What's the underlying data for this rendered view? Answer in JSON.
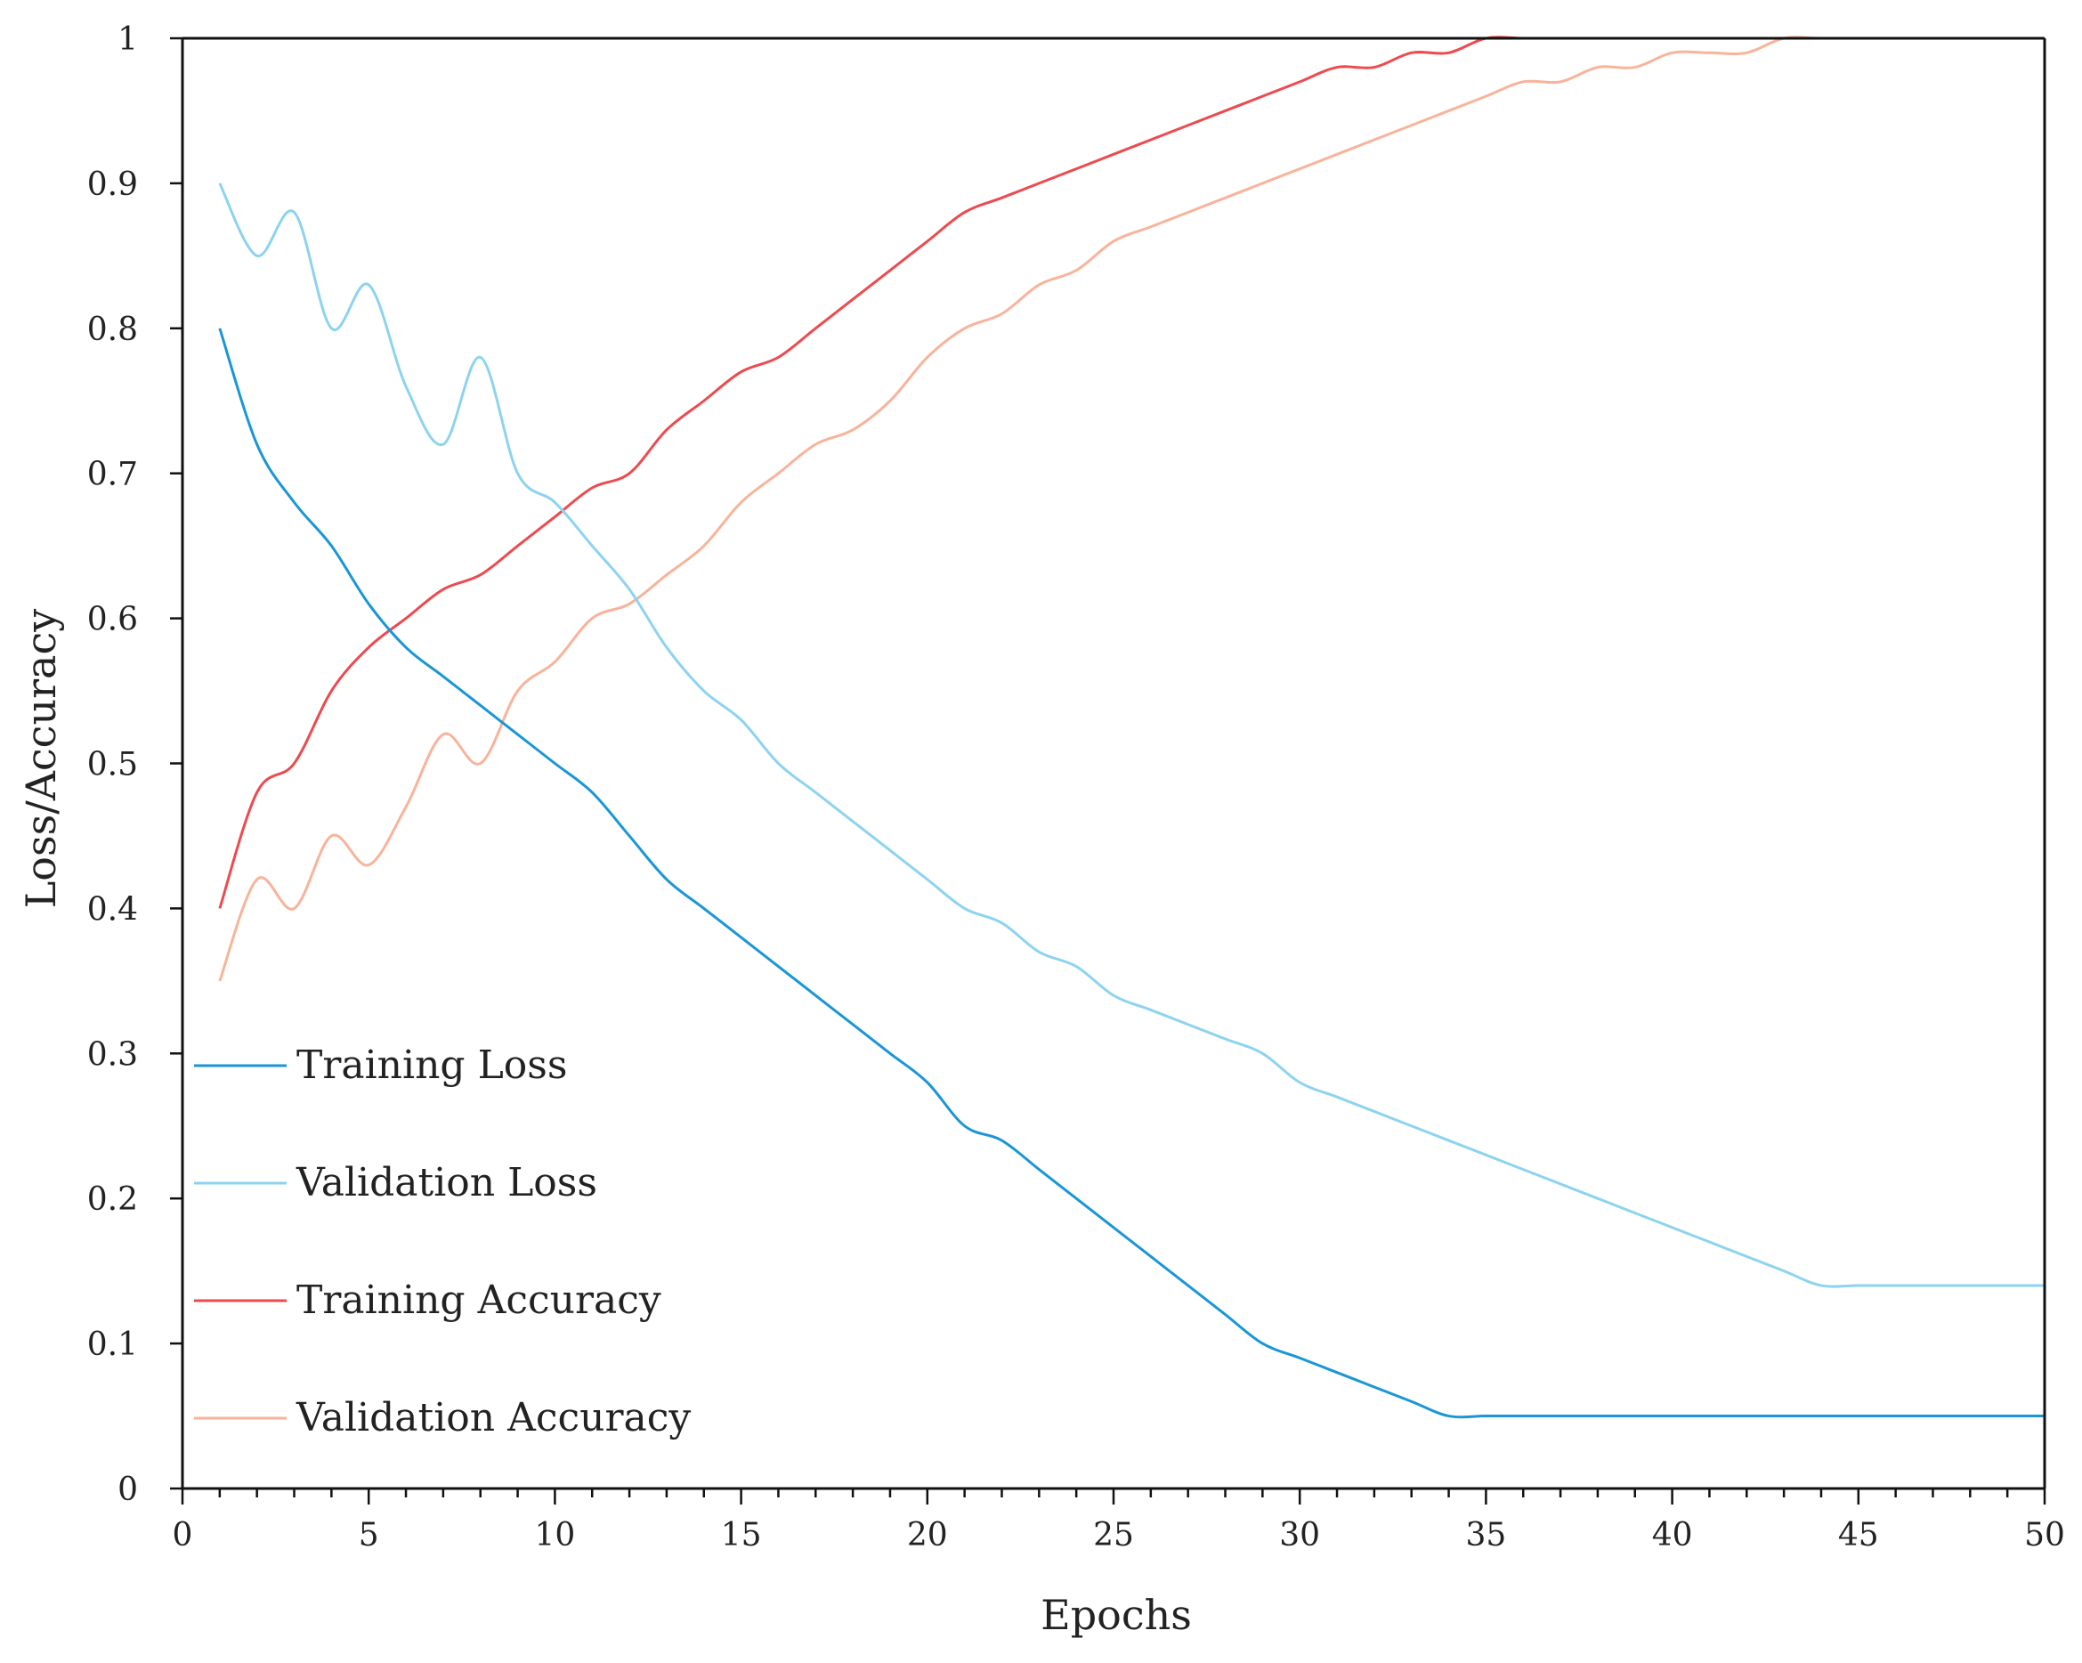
{
  "chart_data": {
    "type": "line",
    "title": "",
    "xlabel": "Epochs",
    "ylabel": "Loss/Accuracy",
    "xlim": [
      0,
      50
    ],
    "ylim": [
      0,
      1
    ],
    "x_ticks": [
      0,
      5,
      10,
      15,
      20,
      25,
      30,
      35,
      40,
      45,
      50
    ],
    "x_tick_labels": [
      "0",
      "5",
      "10",
      "15",
      "20",
      "25",
      "30",
      "35",
      "40",
      "45",
      "50"
    ],
    "y_ticks": [
      0,
      0.1,
      0.2,
      0.3,
      0.4,
      0.5,
      0.6,
      0.7,
      0.8,
      0.9,
      1
    ],
    "y_tick_labels": [
      "0",
      "0.1",
      "0.2",
      "0.3",
      "0.4",
      "0.5",
      "0.6",
      "0.7",
      "0.8",
      "0.9",
      "1"
    ],
    "grid": false,
    "legend_position": "bottom-left",
    "x": [
      1,
      2,
      3,
      4,
      5,
      6,
      7,
      8,
      9,
      10,
      11,
      12,
      13,
      14,
      15,
      16,
      17,
      18,
      19,
      20,
      21,
      22,
      23,
      24,
      25,
      26,
      27,
      28,
      29,
      30,
      31,
      32,
      33,
      34,
      35,
      36,
      37,
      38,
      39,
      40,
      41,
      42,
      43,
      44,
      45,
      46,
      47,
      48,
      49,
      50
    ],
    "series": [
      {
        "name": "Training Loss",
        "color": "#1a96d6",
        "values": [
          0.8,
          0.72,
          0.68,
          0.65,
          0.61,
          0.58,
          0.56,
          0.54,
          0.52,
          0.5,
          0.48,
          0.45,
          0.42,
          0.4,
          0.38,
          0.36,
          0.34,
          0.32,
          0.3,
          0.28,
          0.25,
          0.24,
          0.22,
          0.2,
          0.18,
          0.16,
          0.14,
          0.12,
          0.1,
          0.09,
          0.08,
          0.07,
          0.06,
          0.05,
          0.05,
          0.05,
          0.05,
          0.05,
          0.05,
          0.05,
          0.05,
          0.05,
          0.05,
          0.05,
          0.05,
          0.05,
          0.05,
          0.05,
          0.05,
          0.05
        ]
      },
      {
        "name": "Validation Loss",
        "color": "#8dd3f0",
        "values": [
          0.9,
          0.85,
          0.88,
          0.8,
          0.83,
          0.76,
          0.72,
          0.78,
          0.7,
          0.68,
          0.65,
          0.62,
          0.58,
          0.55,
          0.53,
          0.5,
          0.48,
          0.46,
          0.44,
          0.42,
          0.4,
          0.39,
          0.37,
          0.36,
          0.34,
          0.33,
          0.32,
          0.31,
          0.3,
          0.28,
          0.27,
          0.26,
          0.25,
          0.24,
          0.23,
          0.22,
          0.21,
          0.2,
          0.19,
          0.18,
          0.17,
          0.16,
          0.15,
          0.14,
          0.14,
          0.14,
          0.14,
          0.14,
          0.14,
          0.14
        ]
      },
      {
        "name": "Training Accuracy",
        "color": "#ee4a4e",
        "values": [
          0.4,
          0.48,
          0.5,
          0.55,
          0.58,
          0.6,
          0.62,
          0.63,
          0.65,
          0.67,
          0.69,
          0.7,
          0.73,
          0.75,
          0.77,
          0.78,
          0.8,
          0.82,
          0.84,
          0.86,
          0.88,
          0.89,
          0.9,
          0.91,
          0.92,
          0.93,
          0.94,
          0.95,
          0.96,
          0.97,
          0.98,
          0.98,
          0.99,
          0.99,
          1.0,
          1.0,
          1.0,
          1.0,
          1.0,
          1.0,
          1.0,
          1.0,
          1.0,
          1.0,
          1.0,
          1.0,
          1.0,
          1.0,
          1.0,
          1.0
        ]
      },
      {
        "name": "Validation Accuracy",
        "color": "#f9b39a",
        "values": [
          0.35,
          0.42,
          0.4,
          0.45,
          0.43,
          0.47,
          0.52,
          0.5,
          0.55,
          0.57,
          0.6,
          0.61,
          0.63,
          0.65,
          0.68,
          0.7,
          0.72,
          0.73,
          0.75,
          0.78,
          0.8,
          0.81,
          0.83,
          0.84,
          0.86,
          0.87,
          0.88,
          0.89,
          0.9,
          0.91,
          0.92,
          0.93,
          0.94,
          0.95,
          0.96,
          0.97,
          0.97,
          0.98,
          0.98,
          0.99,
          0.99,
          0.99,
          1.0,
          1.0,
          1.0,
          1.0,
          1.0,
          1.0,
          1.0,
          1.0
        ]
      }
    ]
  }
}
